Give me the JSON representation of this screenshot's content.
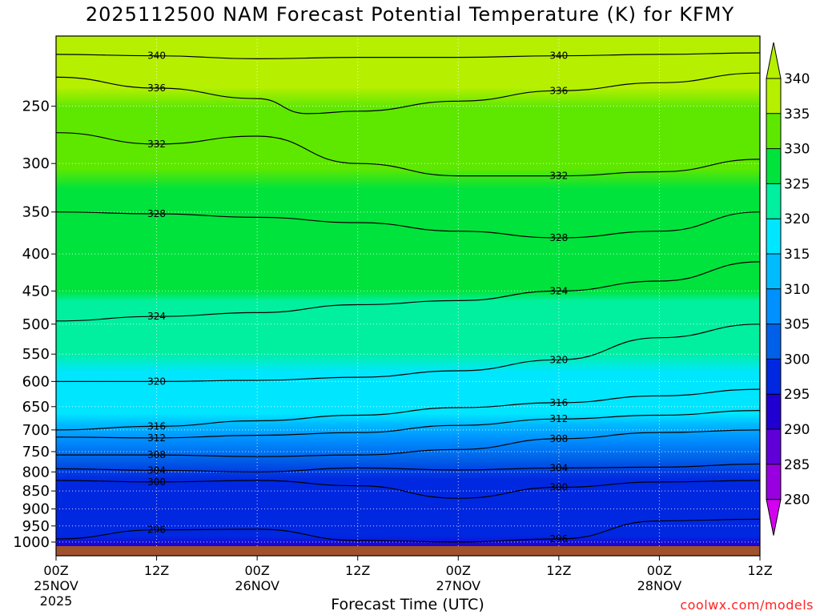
{
  "chart_data": {
    "type": "heatmap",
    "title": "2025112500 NAM Forecast Potential Temperature (K) for KFMY",
    "xlabel": "Forecast Time (UTC)",
    "ylabel": "",
    "y_scale": "log-pressure",
    "y_axis_ticks_hPa": [
      "250",
      "300",
      "350",
      "400",
      "450",
      "500",
      "550",
      "600",
      "650",
      "700",
      "750",
      "800",
      "850",
      "900",
      "950",
      "1000"
    ],
    "x_axis_ticks": [
      {
        "hour": 0,
        "line1": "00Z",
        "line2": "25NOV",
        "line3": "2025"
      },
      {
        "hour": 12,
        "line1": "12Z",
        "line2": "",
        "line3": ""
      },
      {
        "hour": 24,
        "line1": "00Z",
        "line2": "26NOV",
        "line3": ""
      },
      {
        "hour": 36,
        "line1": "12Z",
        "line2": "",
        "line3": ""
      },
      {
        "hour": 48,
        "line1": "00Z",
        "line2": "27NOV",
        "line3": ""
      },
      {
        "hour": 60,
        "line1": "12Z",
        "line2": "",
        "line3": ""
      },
      {
        "hour": 72,
        "line1": "00Z",
        "line2": "28NOV",
        "line3": ""
      },
      {
        "hour": 84,
        "line1": "12Z",
        "line2": "",
        "line3": ""
      }
    ],
    "xlim_hours": [
      0,
      84
    ],
    "ylim_hPa": [
      1013,
      200
    ],
    "grid": true,
    "colorbar": {
      "labels": [
        "340",
        "335",
        "330",
        "325",
        "320",
        "315",
        "310",
        "305",
        "300",
        "295",
        "290",
        "285",
        "280"
      ],
      "colors": [
        "#b6f000",
        "#5ee800",
        "#00e33c",
        "#00f0a0",
        "#00e6ff",
        "#00bcff",
        "#0090ff",
        "#0060e8",
        "#0028e0",
        "#2000d0",
        "#6000d8",
        "#9800e0",
        "#d400f0"
      ]
    },
    "contours": [
      {
        "label": "340",
        "levels_hPa": [
          [
            0,
            212
          ],
          [
            12,
            213
          ],
          [
            24,
            215
          ],
          [
            36,
            214
          ],
          [
            48,
            214
          ],
          [
            60,
            213
          ],
          [
            72,
            212
          ],
          [
            84,
            211
          ]
        ]
      },
      {
        "label": "336",
        "levels_hPa": [
          [
            0,
            228
          ],
          [
            12,
            236
          ],
          [
            24,
            244
          ],
          [
            30,
            256
          ],
          [
            36,
            254
          ],
          [
            48,
            246
          ],
          [
            60,
            238
          ],
          [
            72,
            232
          ],
          [
            84,
            225
          ]
        ]
      },
      {
        "label": "332",
        "levels_hPa": [
          [
            0,
            272
          ],
          [
            12,
            282
          ],
          [
            24,
            275
          ],
          [
            36,
            300
          ],
          [
            48,
            312
          ],
          [
            60,
            312
          ],
          [
            72,
            308
          ],
          [
            84,
            296
          ]
        ]
      },
      {
        "label": "328",
        "levels_hPa": [
          [
            0,
            350
          ],
          [
            12,
            352
          ],
          [
            24,
            356
          ],
          [
            36,
            362
          ],
          [
            48,
            372
          ],
          [
            60,
            380
          ],
          [
            72,
            372
          ],
          [
            84,
            350
          ]
        ]
      },
      {
        "label": "324",
        "levels_hPa": [
          [
            0,
            495
          ],
          [
            12,
            488
          ],
          [
            24,
            482
          ],
          [
            36,
            470
          ],
          [
            48,
            464
          ],
          [
            60,
            450
          ],
          [
            72,
            436
          ],
          [
            84,
            410
          ]
        ]
      },
      {
        "label": "320",
        "levels_hPa": [
          [
            0,
            600
          ],
          [
            12,
            600
          ],
          [
            24,
            598
          ],
          [
            36,
            592
          ],
          [
            48,
            580
          ],
          [
            60,
            560
          ],
          [
            72,
            522
          ],
          [
            84,
            500
          ]
        ]
      },
      {
        "label": "316",
        "levels_hPa": [
          [
            0,
            700
          ],
          [
            12,
            692
          ],
          [
            24,
            680
          ],
          [
            36,
            668
          ],
          [
            48,
            652
          ],
          [
            60,
            642
          ],
          [
            72,
            628
          ],
          [
            84,
            615
          ]
        ]
      },
      {
        "label": "312",
        "levels_hPa": [
          [
            0,
            716
          ],
          [
            12,
            718
          ],
          [
            24,
            712
          ],
          [
            36,
            706
          ],
          [
            48,
            690
          ],
          [
            60,
            676
          ],
          [
            72,
            668
          ],
          [
            84,
            658
          ]
        ]
      },
      {
        "label": "308",
        "levels_hPa": [
          [
            0,
            758
          ],
          [
            12,
            758
          ],
          [
            24,
            762
          ],
          [
            36,
            758
          ],
          [
            48,
            745
          ],
          [
            60,
            720
          ],
          [
            72,
            706
          ],
          [
            84,
            700
          ]
        ]
      },
      {
        "label": "304",
        "levels_hPa": [
          [
            0,
            792
          ],
          [
            12,
            796
          ],
          [
            24,
            800
          ],
          [
            36,
            790
          ],
          [
            48,
            795
          ],
          [
            60,
            790
          ],
          [
            72,
            788
          ],
          [
            84,
            780
          ]
        ]
      },
      {
        "label": "300",
        "levels_hPa": [
          [
            0,
            822
          ],
          [
            12,
            826
          ],
          [
            24,
            822
          ],
          [
            36,
            836
          ],
          [
            48,
            870
          ],
          [
            60,
            840
          ],
          [
            72,
            826
          ],
          [
            84,
            822
          ]
        ]
      },
      {
        "label": "296",
        "levels_hPa": [
          [
            0,
            990
          ],
          [
            12,
            962
          ],
          [
            24,
            960
          ],
          [
            36,
            995
          ],
          [
            48,
            1000
          ],
          [
            60,
            990
          ],
          [
            72,
            935
          ],
          [
            84,
            930
          ]
        ]
      }
    ],
    "ground_color": "#a0522d"
  },
  "credit": "coolwx.com/models"
}
